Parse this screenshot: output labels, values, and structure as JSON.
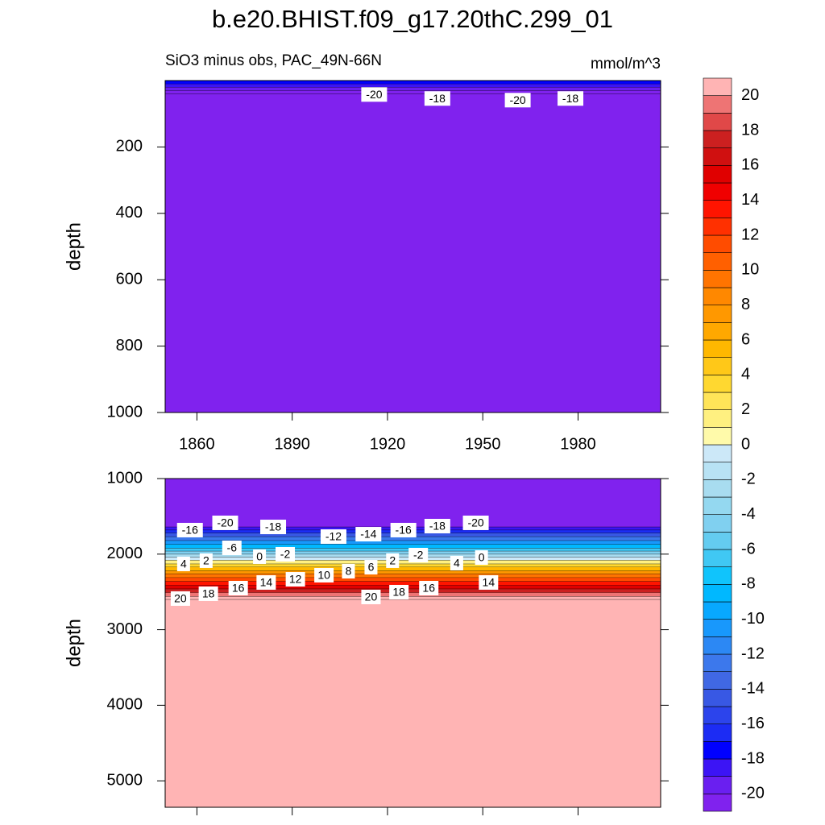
{
  "title": "b.e20.BHIST.f09_g17.20thC.299_01",
  "chart_data": [
    {
      "type": "contour",
      "subtitle_left": "SiO3 minus obs, PAC_49N-66N",
      "subtitle_right": "mmol/m^3",
      "ylabel": "depth",
      "xlim": [
        1850,
        2006
      ],
      "xticks": [
        1860,
        1890,
        1920,
        1950,
        1980
      ],
      "ylim": [
        0,
        1000
      ],
      "yticks": [
        200,
        400,
        600,
        800,
        1000
      ],
      "y_reversed": true,
      "profile": {
        "depth": [
          0,
          10,
          20,
          30,
          40,
          1000
        ],
        "values": [
          -17,
          -18,
          -19,
          -20,
          -21,
          -21
        ]
      },
      "contour_labels": [
        {
          "x": 1915.8,
          "y": 42,
          "value": -20
        },
        {
          "x": 1935.7,
          "y": 54,
          "value": -18
        },
        {
          "x": 1961,
          "y": 59,
          "value": -20
        },
        {
          "x": 1977.6,
          "y": 54,
          "value": -18
        }
      ]
    },
    {
      "type": "contour",
      "ylabel": "depth",
      "xlim": [
        1850,
        2006
      ],
      "xticks": [
        1860,
        1890,
        1920,
        1950,
        1980
      ],
      "ylim": [
        1000,
        5350
      ],
      "yticks": [
        1000,
        2000,
        3000,
        4000,
        5000
      ],
      "y_reversed": true,
      "profile": {
        "depth": [
          1000,
          1600,
          1640,
          1680,
          1720,
          1770,
          1820,
          1870,
          1920,
          1960,
          2000,
          2040,
          2080,
          2130,
          2170,
          2220,
          2260,
          2310,
          2360,
          2410,
          2460,
          2510,
          2560,
          2600,
          5350
        ],
        "values": [
          -21,
          -21,
          -20,
          -18,
          -16,
          -14,
          -12,
          -10,
          -8,
          -6,
          -4,
          -2,
          0,
          2,
          4,
          6,
          8,
          10,
          12,
          14,
          16,
          18,
          20,
          21,
          21
        ]
      },
      "contour_labels": [
        {
          "x": 1857.8,
          "y": 1682,
          "value": -16
        },
        {
          "x": 1868.9,
          "y": 1586,
          "value": -20
        },
        {
          "x": 1884,
          "y": 1640,
          "value": -18
        },
        {
          "x": 1903,
          "y": 1768,
          "value": -12
        },
        {
          "x": 1914,
          "y": 1736,
          "value": -14
        },
        {
          "x": 1925,
          "y": 1682,
          "value": -16
        },
        {
          "x": 1935.7,
          "y": 1629,
          "value": -18
        },
        {
          "x": 1947.8,
          "y": 1586,
          "value": -20
        },
        {
          "x": 1871,
          "y": 1917,
          "value": -6
        },
        {
          "x": 1855.8,
          "y": 2130,
          "value": 4
        },
        {
          "x": 1862.9,
          "y": 2087,
          "value": 2
        },
        {
          "x": 1879.7,
          "y": 2034,
          "value": 0
        },
        {
          "x": 1887.8,
          "y": 2002,
          "value": -2
        },
        {
          "x": 1900,
          "y": 2279,
          "value": 10
        },
        {
          "x": 1907.7,
          "y": 2226,
          "value": 8
        },
        {
          "x": 1914.8,
          "y": 2173,
          "value": 6
        },
        {
          "x": 1921.6,
          "y": 2087,
          "value": 2
        },
        {
          "x": 1929.7,
          "y": 2013,
          "value": -2
        },
        {
          "x": 1941.8,
          "y": 2119,
          "value": 4
        },
        {
          "x": 1949.6,
          "y": 2045,
          "value": 0
        },
        {
          "x": 1854.8,
          "y": 2588,
          "value": 20
        },
        {
          "x": 1863.6,
          "y": 2524,
          "value": 18
        },
        {
          "x": 1873,
          "y": 2450,
          "value": 16
        },
        {
          "x": 1881.8,
          "y": 2375,
          "value": 14
        },
        {
          "x": 1891,
          "y": 2333,
          "value": 12
        },
        {
          "x": 1914.8,
          "y": 2567,
          "value": 20
        },
        {
          "x": 1923.6,
          "y": 2503,
          "value": 18
        },
        {
          "x": 1933,
          "y": 2450,
          "value": 16
        },
        {
          "x": 1951.8,
          "y": 2375,
          "value": 14
        }
      ]
    },
    {
      "type": "colorbar",
      "levels": [
        -20,
        -19,
        -18,
        -17,
        -16,
        -15,
        -14,
        -13,
        -12,
        -11,
        -10,
        -9,
        -8,
        -7,
        -6,
        -5,
        -4,
        -3,
        -2,
        -1,
        0,
        1,
        2,
        3,
        4,
        5,
        6,
        7,
        8,
        9,
        10,
        11,
        12,
        13,
        14,
        15,
        16,
        17,
        18,
        19,
        20
      ],
      "colors": [
        "#8022ee",
        "#6a1ff0",
        "#3c14f5",
        "#0000ff",
        "#1c2cf4",
        "#2c44ec",
        "#3858e4",
        "#4068e4",
        "#3c78ec",
        "#2c88f4",
        "#1898fc",
        "#08a8ff",
        "#00b8ff",
        "#10c4fc",
        "#40c8f4",
        "#64ccf0",
        "#80d0f0",
        "#94d8f0",
        "#a8dcf0",
        "#b8e2f4",
        "#cce8f8",
        "#fffaaa",
        "#fff080",
        "#ffe458",
        "#ffd830",
        "#ffc818",
        "#ffb800",
        "#ffa800",
        "#ff9800",
        "#ff8800",
        "#ff7400",
        "#ff6000",
        "#ff4c00",
        "#ff3000",
        "#ff1400",
        "#f00000",
        "#e00000",
        "#d01010",
        "#cc2020",
        "#e04848",
        "#ee7474",
        "#ffb4b4"
      ],
      "ticks": [
        -20,
        -18,
        -16,
        -14,
        -12,
        -10,
        -8,
        -6,
        -4,
        -2,
        0,
        2,
        4,
        6,
        8,
        10,
        12,
        14,
        16,
        18,
        20
      ]
    }
  ]
}
